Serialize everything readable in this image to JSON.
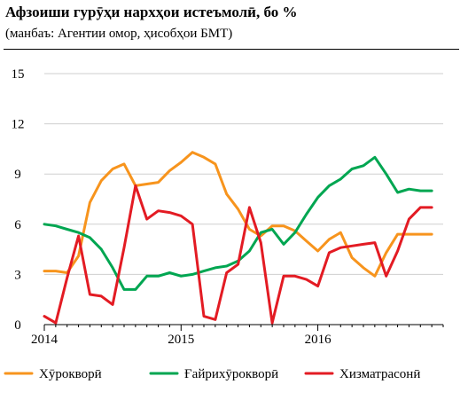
{
  "chart_data": {
    "type": "line",
    "title": "Афзоиши гурӯҳи нархҳои истеъмолӣ, бо %",
    "subtitle": "(манбаъ: Агентии омор, ҳисобҳои БМТ)",
    "xlabel": "",
    "ylabel": "",
    "ylim": [
      0,
      15
    ],
    "yticks": [
      0,
      3,
      6,
      9,
      12,
      15
    ],
    "xlim": [
      2014.0,
      2016.9167
    ],
    "xticks": [
      {
        "value": 2014,
        "label": "2014"
      },
      {
        "value": 2015,
        "label": "2015"
      },
      {
        "value": 2016,
        "label": "2016"
      }
    ],
    "grid": "horizontal",
    "legend": "bottom",
    "x": [
      2014.0,
      2014.0833,
      2014.1667,
      2014.25,
      2014.3333,
      2014.4167,
      2014.5,
      2014.5833,
      2014.6667,
      2014.75,
      2014.8333,
      2014.9167,
      2015.0,
      2015.0833,
      2015.1667,
      2015.25,
      2015.3333,
      2015.4167,
      2015.5,
      2015.5833,
      2015.6667,
      2015.75,
      2015.8333,
      2015.9167,
      2016.0,
      2016.0833,
      2016.1667,
      2016.25,
      2016.3333,
      2016.4167,
      2016.5,
      2016.5833,
      2016.6667,
      2016.75,
      2016.8333
    ],
    "series": [
      {
        "name": "Хӯрокворӣ",
        "color": "#f7941d",
        "values": [
          3.2,
          3.2,
          3.1,
          4.1,
          7.3,
          8.6,
          9.3,
          9.6,
          8.3,
          8.4,
          8.5,
          9.2,
          9.7,
          10.3,
          10.0,
          9.6,
          7.8,
          6.9,
          5.7,
          5.3,
          5.9,
          5.9,
          5.6,
          5.0,
          4.4,
          5.1,
          5.5,
          4.0,
          3.4,
          2.9,
          4.3,
          5.4,
          5.4,
          5.4,
          5.4
        ]
      },
      {
        "name": "Ғайрихӯрокворӣ",
        "color": "#00a651",
        "values": [
          6.0,
          5.9,
          5.7,
          5.5,
          5.2,
          4.5,
          3.4,
          2.1,
          2.1,
          2.9,
          2.9,
          3.1,
          2.9,
          3.0,
          3.2,
          3.4,
          3.5,
          3.8,
          4.4,
          5.5,
          5.7,
          4.8,
          5.5,
          6.6,
          7.6,
          8.3,
          8.7,
          9.3,
          9.5,
          10.0,
          9.0,
          7.9,
          8.1,
          8.0,
          8.0
        ]
      },
      {
        "name": "Хизматрасонӣ",
        "color": "#e31b23",
        "values": [
          0.5,
          0.1,
          2.8,
          5.3,
          1.8,
          1.7,
          1.2,
          4.6,
          8.3,
          6.3,
          6.8,
          6.7,
          6.5,
          6.0,
          0.5,
          0.3,
          3.1,
          3.6,
          7.0,
          4.9,
          0.1,
          2.9,
          2.9,
          2.7,
          2.3,
          4.3,
          4.6,
          4.7,
          4.8,
          4.9,
          2.9,
          4.4,
          6.3,
          7.0,
          7.0
        ]
      }
    ]
  }
}
